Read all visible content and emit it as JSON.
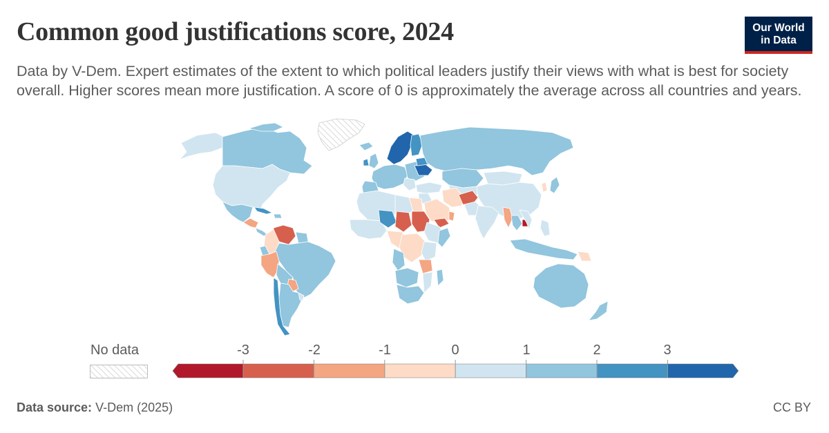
{
  "header": {
    "title": "Common good justifications score, 2024",
    "subtitle": "Data by V-Dem. Expert estimates of the extent to which political leaders justify their views with what is best for society overall. Higher scores mean more justification. A score of 0 is approximately the average across all countries and years.",
    "logo_line1": "Our World",
    "logo_line2": "in Data"
  },
  "legend": {
    "no_data_label": "No data",
    "ticks": [
      "-3",
      "-2",
      "-1",
      "0",
      "1",
      "2",
      "3"
    ],
    "bins": [
      {
        "from": null,
        "to": -3,
        "color": "#b2182b"
      },
      {
        "from": -3,
        "to": -2,
        "color": "#d6604d"
      },
      {
        "from": -2,
        "to": -1,
        "color": "#f4a582"
      },
      {
        "from": -1,
        "to": 0,
        "color": "#fddbc7"
      },
      {
        "from": 0,
        "to": 1,
        "color": "#d1e5f0"
      },
      {
        "from": 1,
        "to": 2,
        "color": "#92c5de"
      },
      {
        "from": 2,
        "to": 3,
        "color": "#4393c3"
      },
      {
        "from": 3,
        "to": null,
        "color": "#2166ac"
      }
    ]
  },
  "footer": {
    "source_label": "Data source:",
    "source_value": "V-Dem (2025)",
    "license": "CC BY"
  }
}
